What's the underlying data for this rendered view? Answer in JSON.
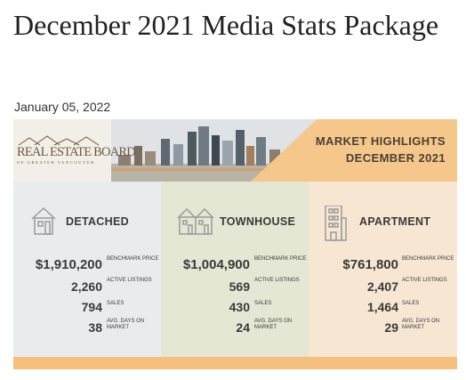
{
  "post": {
    "title": "December 2021 Media Stats Package",
    "date": "January 05, 2022"
  },
  "banner": {
    "logo_name": "REAL ESTATE BOARD",
    "logo_sub": "OF GREATER VANCOUVER",
    "highlights_line1": "MARKET HIGHLIGHTS",
    "highlights_line2": "DECEMBER 2021"
  },
  "categories": [
    {
      "name": "DETACHED",
      "icon": "house-icon",
      "benchmark_price": "$1,910,200",
      "active_listings": "2,260",
      "sales": "794",
      "avg_days_on_market": "38"
    },
    {
      "name": "TOWNHOUSE",
      "icon": "townhouse-icon",
      "benchmark_price": "$1,004,900",
      "active_listings": "569",
      "sales": "430",
      "avg_days_on_market": "24"
    },
    {
      "name": "APARTMENT",
      "icon": "apartment-building-icon",
      "benchmark_price": "$761,800",
      "active_listings": "2,407",
      "sales": "1,464",
      "avg_days_on_market": "29"
    }
  ],
  "labels": {
    "benchmark_price": "BENCHMARK PRICE",
    "active_listings": "ACTIVE LISTINGS",
    "sales": "SALES",
    "avg_days_on_market": "AVG. DAYS ON MARKET"
  },
  "colors": {
    "detached_bg": "#e9ecef",
    "townhouse_bg": "#e3e7d3",
    "apartment_bg": "#f6e6d2",
    "accent_orange": "#f6c78a"
  }
}
